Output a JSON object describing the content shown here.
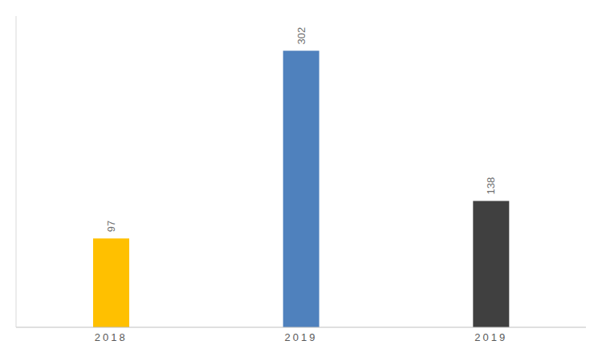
{
  "chart_data": {
    "type": "bar",
    "categories": [
      "2018",
      "2019",
      "2019"
    ],
    "values": [
      97,
      302,
      138
    ],
    "colors": [
      "#FFC000",
      "#4F81BD",
      "#404040"
    ],
    "ylim": [
      0,
      340
    ],
    "data_labels": true,
    "tick_labels": "x",
    "grid": false
  }
}
